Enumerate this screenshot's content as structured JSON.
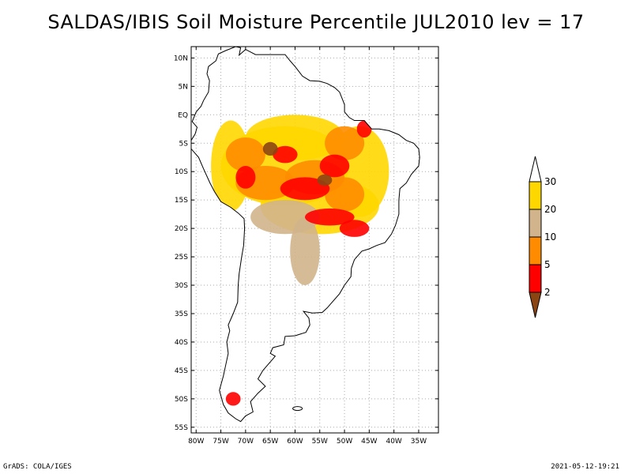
{
  "title": "SALDAS/IBIS Soil Moisture Percentile JUL2010 lev = 17",
  "footer": {
    "left": "GrADS: COLA/IGES",
    "right": "2021-05-12-19:21"
  },
  "map": {
    "region": "South America",
    "lat_range": [
      -56,
      12
    ],
    "lon_range": [
      -81,
      -31
    ],
    "grid": true,
    "lat_ticks": [
      {
        "value": 10,
        "label": "10N"
      },
      {
        "value": 5,
        "label": "5N"
      },
      {
        "value": 0,
        "label": "EQ"
      },
      {
        "value": -5,
        "label": "5S"
      },
      {
        "value": -10,
        "label": "10S"
      },
      {
        "value": -15,
        "label": "15S"
      },
      {
        "value": -20,
        "label": "20S"
      },
      {
        "value": -25,
        "label": "25S"
      },
      {
        "value": -30,
        "label": "30S"
      },
      {
        "value": -35,
        "label": "35S"
      },
      {
        "value": -40,
        "label": "40S"
      },
      {
        "value": -45,
        "label": "45S"
      },
      {
        "value": -50,
        "label": "50S"
      },
      {
        "value": -55,
        "label": "55S"
      }
    ],
    "lon_ticks": [
      {
        "value": -80,
        "label": "80W"
      },
      {
        "value": -75,
        "label": "75W"
      },
      {
        "value": -70,
        "label": "70W"
      },
      {
        "value": -65,
        "label": "65W"
      },
      {
        "value": -60,
        "label": "60W"
      },
      {
        "value": -55,
        "label": "55W"
      },
      {
        "value": -50,
        "label": "50W"
      },
      {
        "value": -45,
        "label": "45W"
      },
      {
        "value": -40,
        "label": "40W"
      },
      {
        "value": -35,
        "label": "35W"
      }
    ]
  },
  "legend": {
    "levels": [
      "2",
      "5",
      "10",
      "20",
      "30"
    ],
    "bins": [
      {
        "range": "<2",
        "color": "#8b4513"
      },
      {
        "range": "2-5",
        "color": "#ff0000"
      },
      {
        "range": "5-10",
        "color": "#ff8c00"
      },
      {
        "range": "10-20",
        "color": "#d2b48c"
      },
      {
        "range": "20-30",
        "color": "#ffd700"
      },
      {
        "range": ">30",
        "color": "#ffffff"
      }
    ]
  }
}
